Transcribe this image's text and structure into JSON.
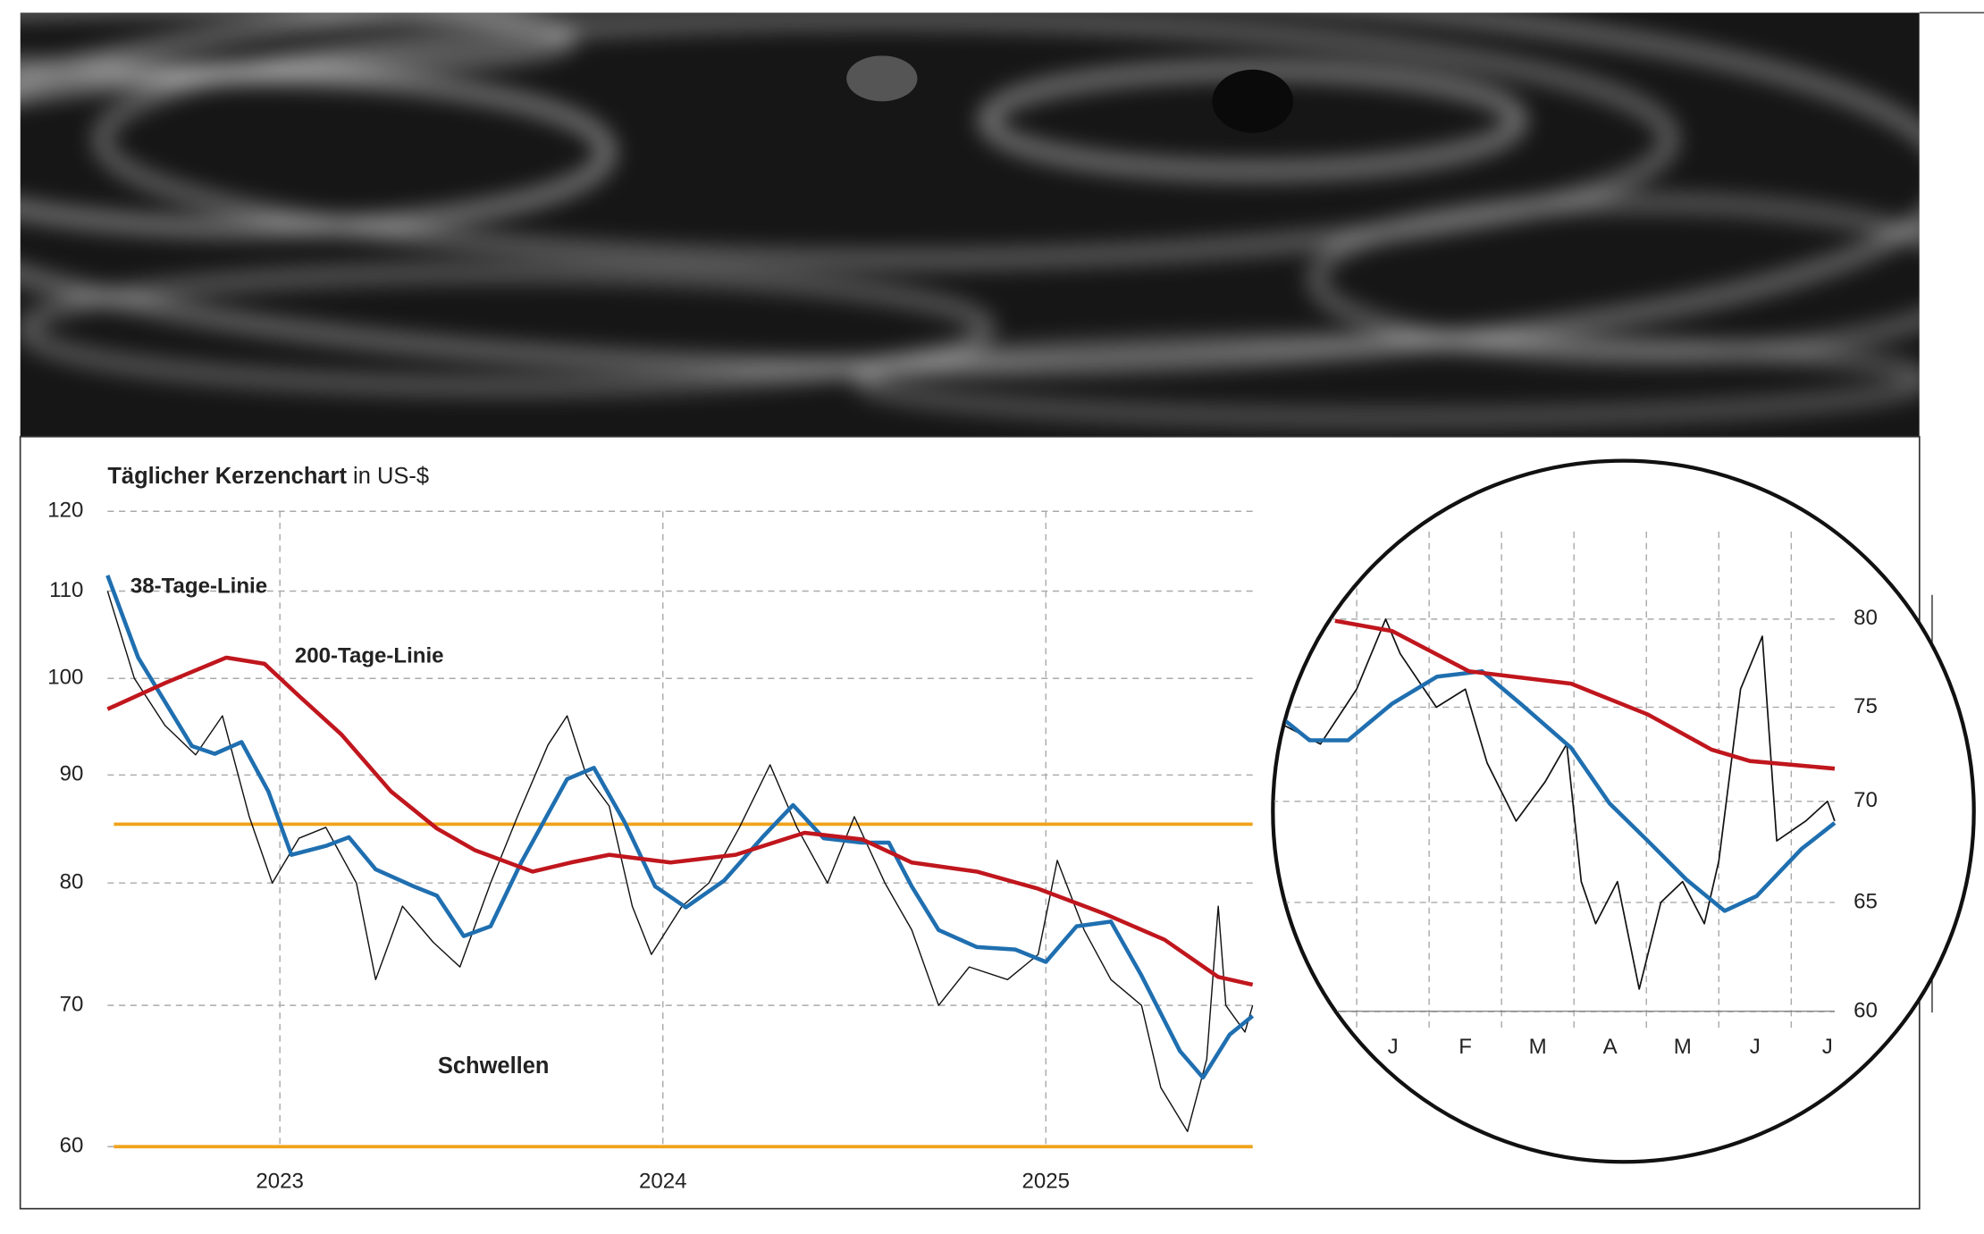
{
  "chart_data": [
    {
      "type": "line",
      "title": "Täglicher Kerzenchart",
      "unit": "in US-$",
      "log_scale": true,
      "grid": true,
      "xlim": [
        2022.55,
        2025.54
      ],
      "xticks": [
        2023,
        2024,
        2025
      ],
      "ylim": [
        60,
        120
      ],
      "yticks": [
        60,
        70,
        80,
        90,
        100,
        110,
        120
      ],
      "thresholds": [
        85.3,
        60
      ],
      "threshold_label": "Schwellen",
      "threshold_color": "#f0a21a",
      "series": [
        {
          "color": "#111111",
          "x": [
            2022.55,
            2022.62,
            2022.7,
            2022.78,
            2022.85,
            2022.92,
            2022.98,
            2023.05,
            2023.12,
            2023.2,
            2023.25,
            2023.32,
            2023.4,
            2023.47,
            2023.55,
            2023.62,
            2023.7,
            2023.75,
            2023.8,
            2023.86,
            2023.92,
            2023.97,
            2024.05,
            2024.12,
            2024.2,
            2024.28,
            2024.35,
            2024.43,
            2024.5,
            2024.58,
            2024.65,
            2024.72,
            2024.8,
            2024.9,
            2024.98,
            2025.03,
            2025.1,
            2025.17,
            2025.25,
            2025.3,
            2025.37,
            2025.42,
            2025.45,
            2025.47,
            2025.52,
            2025.54
          ],
          "values": [
            110,
            100,
            95,
            92,
            96,
            86,
            80,
            84,
            85,
            80,
            72,
            78,
            75,
            73,
            80,
            86,
            93,
            96,
            90,
            87,
            78,
            74,
            78,
            80,
            85,
            91,
            85,
            80,
            86,
            80,
            76,
            70,
            73,
            72,
            74,
            82,
            76,
            72,
            70,
            64,
            61,
            66,
            78,
            70,
            68,
            70
          ]
        },
        {
          "name": "38-Tage-Linie",
          "color": "#1f6fb0",
          "x": [
            2022.55,
            2022.63,
            2022.77,
            2022.83,
            2022.9,
            2022.97,
            2023.03,
            2023.12,
            2023.18,
            2023.25,
            2023.35,
            2023.41,
            2023.48,
            2023.55,
            2023.63,
            2023.75,
            2023.82,
            2023.9,
            2023.98,
            2024.06,
            2024.16,
            2024.26,
            2024.34,
            2024.42,
            2024.52,
            2024.59,
            2024.65,
            2024.72,
            2024.82,
            2024.92,
            2025.0,
            2025.08,
            2025.17,
            2025.25,
            2025.35,
            2025.41,
            2025.48,
            2025.54
          ],
          "values": [
            111.9,
            102.3,
            92.9,
            92.1,
            93.3,
            88.4,
            82.5,
            83.3,
            84.1,
            81.2,
            79.7,
            78.9,
            75.5,
            76.3,
            81.8,
            89.6,
            90.7,
            85.5,
            79.7,
            77.9,
            80.2,
            84.1,
            87.1,
            84.0,
            83.6,
            83.6,
            79.7,
            76.0,
            74.6,
            74.4,
            73.4,
            76.3,
            76.7,
            72.3,
            66.6,
            64.7,
            67.8,
            69.2
          ]
        },
        {
          "name": "200-Tage-Linie",
          "color": "#c0161d",
          "x": [
            2022.55,
            2022.7,
            2022.86,
            2022.96,
            2023.05,
            2023.16,
            2023.29,
            2023.41,
            2023.51,
            2023.66,
            2023.76,
            2023.86,
            2024.02,
            2024.19,
            2024.37,
            2024.52,
            2024.65,
            2024.82,
            2024.98,
            2025.15,
            2025.31,
            2025.45,
            2025.54
          ],
          "values": [
            96.7,
            99.5,
            102.3,
            101.6,
            98.1,
            94.1,
            88.4,
            84.9,
            82.9,
            81.0,
            81.8,
            82.5,
            81.8,
            82.5,
            84.5,
            83.9,
            81.8,
            81.0,
            79.5,
            77.4,
            75.2,
            72.2,
            71.6
          ]
        }
      ]
    },
    {
      "type": "line",
      "log_scale": true,
      "grid": true,
      "categories": [
        "J",
        "F",
        "M",
        "A",
        "M",
        "J",
        "J"
      ],
      "xlim": [
        0,
        7.6
      ],
      "ylim": [
        59.3,
        85.3
      ],
      "yticks": [
        60,
        65,
        70,
        75,
        80
      ],
      "series": [
        {
          "color": "#111111",
          "x": [
            0,
            0.5,
            1.0,
            1.4,
            1.6,
            2.1,
            2.5,
            2.8,
            3.2,
            3.6,
            3.9,
            4.1,
            4.3,
            4.6,
            4.9,
            5.2,
            5.5,
            5.8,
            6.0,
            6.3,
            6.6,
            6.8,
            7.2,
            7.5,
            7.6
          ],
          "values": [
            74,
            73,
            76,
            80,
            78,
            75,
            76,
            72,
            69,
            71,
            73,
            66,
            64,
            66,
            61,
            65,
            66,
            64,
            67,
            76,
            79,
            68,
            69,
            70,
            69
          ]
        },
        {
          "color": "#1f6fb0",
          "x": [
            0,
            0.35,
            0.88,
            1.49,
            2.11,
            2.73,
            3.26,
            3.96,
            4.49,
            5.02,
            5.55,
            6.08,
            6.52,
            7.14,
            7.6
          ],
          "values": [
            74.3,
            73.2,
            73.2,
            75.2,
            76.7,
            77.0,
            75.2,
            72.8,
            69.9,
            68.0,
            66.1,
            64.6,
            65.3,
            67.6,
            68.9
          ]
        },
        {
          "color": "#c0161d",
          "x": [
            0.7,
            1.49,
            2.55,
            3.96,
            5.02,
            5.9,
            6.43,
            7.6
          ],
          "values": [
            79.9,
            79.3,
            77.0,
            76.3,
            74.6,
            72.7,
            72.1,
            71.7
          ]
        }
      ]
    }
  ]
}
